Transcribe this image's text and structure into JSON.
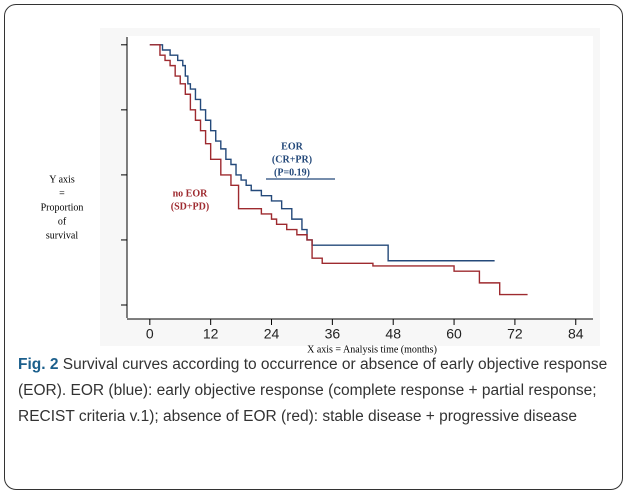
{
  "chart_data": {
    "type": "line",
    "step": true,
    "y_label": [
      "Y axis",
      "=",
      "Proportion",
      "of",
      "survival"
    ],
    "x_label": "X axis = Analysis time (months)",
    "xlim": [
      -4.5,
      87.4
    ],
    "xticks": [
      0,
      12,
      24,
      36,
      48,
      60,
      72,
      84
    ],
    "ylim": [
      -0.05,
      1.03
    ],
    "yticks": [
      0,
      0.25,
      0.5,
      0.75,
      1
    ],
    "series": [
      {
        "name": "EOR",
        "color": "#24497a",
        "x": [
          0,
          2.5,
          4,
          5.5,
          6.5,
          7,
          7.5,
          8,
          9,
          10,
          11,
          12,
          13,
          14,
          15,
          16,
          17,
          18,
          19,
          20,
          22,
          24,
          26,
          28,
          30,
          31,
          32,
          47,
          68
        ],
        "values": [
          1,
          0.98,
          0.96,
          0.94,
          0.92,
          0.88,
          0.85,
          0.83,
          0.79,
          0.75,
          0.71,
          0.67,
          0.63,
          0.6,
          0.56,
          0.54,
          0.5,
          0.48,
          0.46,
          0.44,
          0.42,
          0.4,
          0.37,
          0.33,
          0.29,
          0.25,
          0.23,
          0.17,
          0.17
        ]
      },
      {
        "name": "no EOR",
        "color": "#9e2a2f",
        "x": [
          0,
          2,
          3,
          4,
          5,
          6,
          7,
          8,
          9,
          10,
          11,
          12,
          14,
          16,
          17.5,
          22,
          24,
          25,
          27,
          29,
          31,
          32,
          34,
          44,
          60,
          65,
          69,
          74.5
        ],
        "values": [
          1,
          0.96,
          0.94,
          0.92,
          0.88,
          0.85,
          0.81,
          0.75,
          0.71,
          0.67,
          0.62,
          0.56,
          0.5,
          0.46,
          0.37,
          0.35,
          0.33,
          0.31,
          0.29,
          0.27,
          0.25,
          0.18,
          0.16,
          0.15,
          0.13,
          0.085,
          0.04,
          0.04
        ]
      }
    ],
    "annotations": [
      {
        "lines": [
          "EOR",
          "(CR+PR)",
          "(P=0.19)"
        ],
        "color": "#24497a"
      },
      {
        "lines": [
          "no EOR",
          "(SD+PD)"
        ],
        "color": "#9e2a2f"
      }
    ]
  },
  "caption": {
    "label": "Fig. 2",
    "text": "Survival curves according to occurrence or absence of early objective response (EOR). EOR (blue): early objective response (complete response + partial response; RECIST criteria v.1); absence of EOR (red): stable disease + progressive disease"
  }
}
